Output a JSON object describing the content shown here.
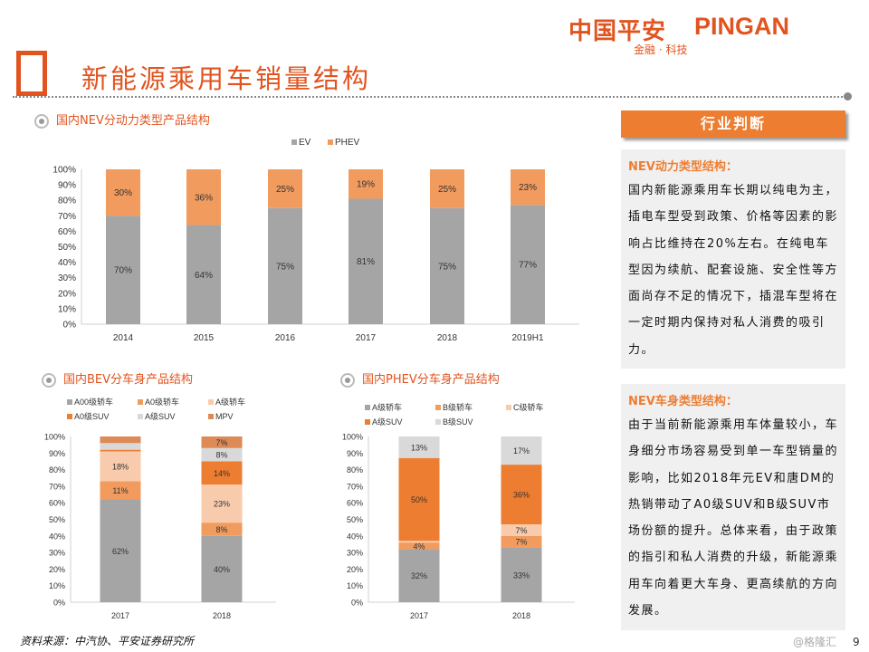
{
  "header": {
    "logo_cn": "中国平安",
    "logo_en": "PINGAN",
    "logo_sub": "金融 · 科技",
    "title": "新能源乘用车销量结构"
  },
  "sections": {
    "nev": "国内NEV分动力类型产品结构",
    "bev": "国内BEV分车身产品结构",
    "phev": "国内PHEV分车身产品结构"
  },
  "sidebar": {
    "header": "行业判断",
    "box1_title": "NEV动力类型结构：",
    "box1_text": "国内新能源乘用车长期以纯电为主，插电车型受到政策、价格等因素的影响占比维持在20%左右。在纯电车型因为续航、配套设施、安全性等方面尚存不足的情况下，插混车型将在一定时期内保持对私人消费的吸引力。",
    "box2_title": "NEV车身类型结构：",
    "box2_text": "由于当前新能源乘用车体量较小，车身细分市场容易受到单一车型销量的影响，比如2018年元EV和唐DM的热销带动了A0级SUV和B级SUV市场份额的提升。总体来看，由于政策的指引和私人消费的升级，新能源乘用车向着更大车身、更高续航的方向发展。"
  },
  "footer": {
    "source": "资料来源：中汽协、平安证券研究所",
    "watermark": "@格隆汇",
    "page": "9"
  },
  "chart_data": [
    {
      "type": "bar",
      "stacked": true,
      "categories": [
        "2014",
        "2015",
        "2016",
        "2017",
        "2018",
        "2019H1"
      ],
      "ylim": [
        0,
        100
      ],
      "yticks": [
        "0%",
        "10%",
        "20%",
        "30%",
        "40%",
        "50%",
        "60%",
        "70%",
        "80%",
        "90%",
        "100%"
      ],
      "legend": "top",
      "series": [
        {
          "name": "EV",
          "color": "#a5a5a5",
          "values": [
            70,
            64,
            75,
            81,
            75,
            77
          ],
          "labels": [
            "70%",
            "64%",
            "75%",
            "81%",
            "75%",
            "77%"
          ]
        },
        {
          "name": "PHEV",
          "color": "#f19b5f",
          "values": [
            30,
            36,
            25,
            19,
            25,
            23
          ],
          "labels": [
            "30%",
            "36%",
            "25%",
            "19%",
            "25%",
            "23%"
          ]
        }
      ]
    },
    {
      "type": "bar",
      "stacked": true,
      "categories": [
        "2017",
        "2018"
      ],
      "ylim": [
        0,
        100
      ],
      "yticks": [
        "0%",
        "10%",
        "20%",
        "30%",
        "40%",
        "50%",
        "60%",
        "70%",
        "80%",
        "90%",
        "100%"
      ],
      "legend": "top",
      "series": [
        {
          "name": "A00级轿车",
          "color": "#a5a5a5",
          "values": [
            62,
            40
          ],
          "labels": [
            "62%",
            "40%"
          ]
        },
        {
          "name": "A0级轿车",
          "color": "#f19b5f",
          "values": [
            11,
            8
          ],
          "labels": [
            "11%",
            "8%"
          ]
        },
        {
          "name": "A级轿车",
          "color": "#f8cbad",
          "values": [
            18,
            23
          ],
          "labels": [
            "18%",
            "23%"
          ]
        },
        {
          "name": "A0级SUV",
          "color": "#ed7d31",
          "values": [
            1,
            14
          ],
          "labels": [
            "",
            "14%"
          ]
        },
        {
          "name": "A级SUV",
          "color": "#d9d9d9",
          "values": [
            4,
            8
          ],
          "labels": [
            "",
            "8%"
          ]
        },
        {
          "name": "MPV",
          "color": "#dd8a57",
          "values": [
            4,
            7
          ],
          "labels": [
            "",
            "7%"
          ]
        }
      ]
    },
    {
      "type": "bar",
      "stacked": true,
      "categories": [
        "2017",
        "2018"
      ],
      "ylim": [
        0,
        100
      ],
      "yticks": [
        "0%",
        "10%",
        "20%",
        "30%",
        "40%",
        "50%",
        "60%",
        "70%",
        "80%",
        "90%",
        "100%"
      ],
      "legend": "top",
      "series": [
        {
          "name": "A级轿车",
          "color": "#a5a5a5",
          "values": [
            32,
            33
          ],
          "labels": [
            "32%",
            "33%"
          ]
        },
        {
          "name": "B级轿车",
          "color": "#f19b5f",
          "values": [
            4,
            7
          ],
          "labels": [
            "4%",
            "7%"
          ]
        },
        {
          "name": "C级轿车",
          "color": "#f8cbad",
          "values": [
            1,
            7
          ],
          "labels": [
            "",
            "7%"
          ]
        },
        {
          "name": "A级SUV",
          "color": "#ed7d31",
          "values": [
            50,
            36
          ],
          "labels": [
            "50%",
            "36%"
          ]
        },
        {
          "name": "B级SUV",
          "color": "#d9d9d9",
          "values": [
            13,
            17
          ],
          "labels": [
            "13%",
            "17%"
          ]
        }
      ]
    }
  ]
}
